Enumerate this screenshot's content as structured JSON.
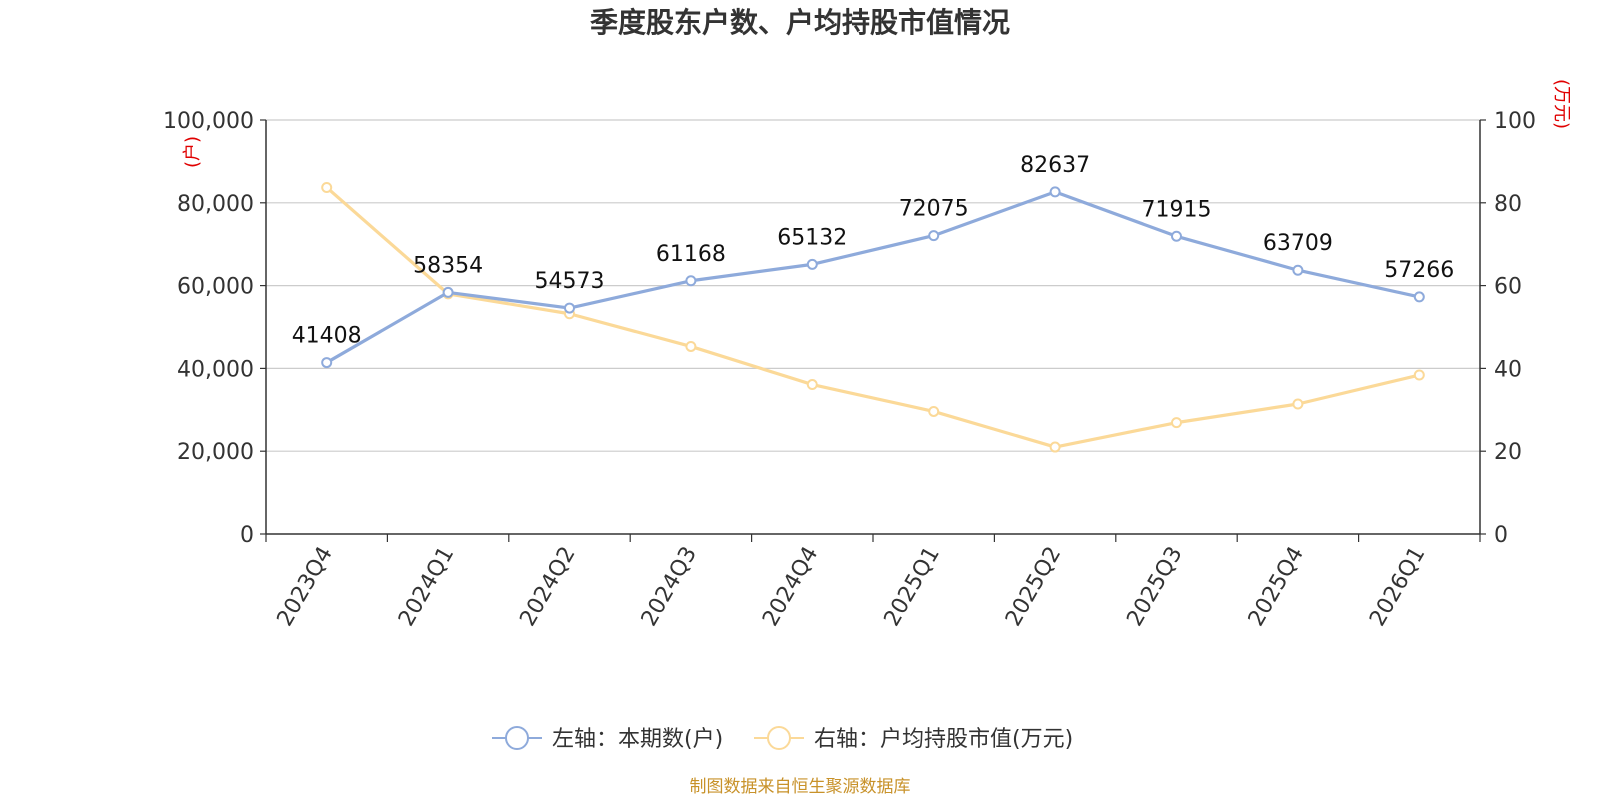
{
  "chart_data": {
    "type": "line",
    "title": "季度股东户数、户均持股市值情况",
    "categories": [
      "2023Q4",
      "2024Q1",
      "2024Q2",
      "2024Q3",
      "2024Q4",
      "2025Q1",
      "2025Q2",
      "2025Q3",
      "2025Q4",
      "2026Q1"
    ],
    "left_axis": {
      "unit": "(户)",
      "range": [
        0,
        100000
      ],
      "ticks": [
        "0",
        "20,000",
        "40,000",
        "60,000",
        "80,000",
        "100,000"
      ]
    },
    "right_axis": {
      "unit": "(万元)",
      "range": [
        0,
        100
      ],
      "ticks": [
        "0",
        "20",
        "40",
        "60",
        "80",
        "100"
      ]
    },
    "series": [
      {
        "name": "左轴：本期数(户)",
        "axis": "left",
        "color": "#8eaadb",
        "values": [
          41408,
          58354,
          54573,
          61168,
          65132,
          72075,
          82637,
          71915,
          63709,
          57266
        ],
        "labels": [
          "41408",
          "58354",
          "54573",
          "61168",
          "65132",
          "72075",
          "82637",
          "71915",
          "63709",
          "57266"
        ]
      },
      {
        "name": "右轴：户均持股市值(万元)",
        "axis": "right",
        "color": "#fbd998",
        "values": [
          83.7,
          58.0,
          53.2,
          45.3,
          36.1,
          29.6,
          21.0,
          26.9,
          31.4,
          38.4
        ]
      }
    ],
    "grid": true,
    "legend_position": "bottom-center",
    "source": "制图数据来自恒生聚源数据库"
  }
}
